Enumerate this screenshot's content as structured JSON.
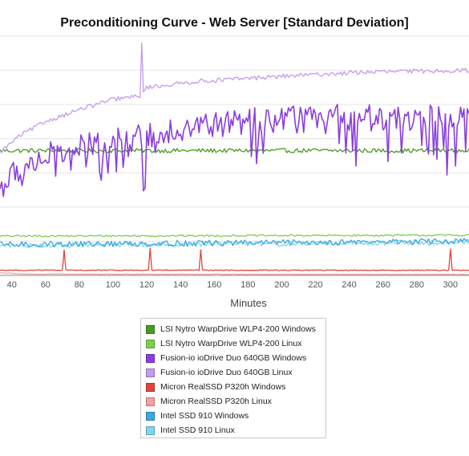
{
  "chart_data": {
    "type": "line",
    "title": "Preconditioning Curve - Web Server [Standard Deviation]",
    "xlabel": "Minutes",
    "ylabel": "",
    "xlim": [
      33,
      311
    ],
    "ylim": [
      0,
      28
    ],
    "x_ticks": [
      40,
      60,
      80,
      100,
      120,
      140,
      160,
      180,
      200,
      220,
      240,
      260,
      280,
      300
    ],
    "grid": true,
    "legend_position": "bottom",
    "series": [
      {
        "name": "LSI Nytro WarpDrive WLP4-200 Windows",
        "color": "#4a9a1c",
        "profile": [
          [
            33,
            14.6
          ],
          [
            311,
            14.6
          ]
        ],
        "noise": 0.25,
        "spikes": []
      },
      {
        "name": "LSI Nytro WarpDrive WLP4-200 Linux",
        "color": "#7bd04a",
        "profile": [
          [
            33,
            4.6
          ],
          [
            311,
            4.7
          ]
        ],
        "noise": 0.1,
        "spikes": []
      },
      {
        "name": "Fusion-io ioDrive Duo 640GB Windows",
        "color": "#8a3ee0",
        "profile": [
          [
            33,
            10.2
          ],
          [
            45,
            12.5
          ],
          [
            60,
            14.0
          ],
          [
            90,
            15.3
          ],
          [
            115,
            16.0
          ],
          [
            130,
            17.0
          ],
          [
            180,
            18.0
          ],
          [
            240,
            18.5
          ],
          [
            311,
            18.3
          ]
        ],
        "noise": 1.6,
        "spikes": []
      },
      {
        "name": "Fusion-io ioDrive Duo 640GB Linux",
        "color": "#c29af0",
        "profile": [
          [
            33,
            14.4
          ],
          [
            45,
            16.4
          ],
          [
            60,
            18.0
          ],
          [
            80,
            19.4
          ],
          [
            100,
            20.6
          ],
          [
            117,
            21.0
          ],
          [
            120,
            22.0
          ],
          [
            150,
            22.7
          ],
          [
            200,
            23.3
          ],
          [
            250,
            23.8
          ],
          [
            311,
            24.0
          ]
        ],
        "noise": 0.25,
        "spikes": [
          [
            117,
            27.2
          ],
          [
            116,
            20.8
          ]
        ]
      },
      {
        "name": "Micron RealSSD P320h Windows",
        "color": "#e0443c",
        "profile": [
          [
            33,
            0.6
          ],
          [
            311,
            0.6
          ]
        ],
        "noise": 0.05,
        "spikes": [
          [
            71,
            3.0
          ],
          [
            122,
            3.2
          ],
          [
            152,
            3.0
          ],
          [
            300,
            3.1
          ]
        ]
      },
      {
        "name": "Micron RealSSD P320h Linux",
        "color": "#f4a0a0",
        "profile": [
          [
            33,
            0.3
          ],
          [
            50,
            0.15
          ],
          [
            311,
            0.1
          ]
        ],
        "noise": 0.03,
        "spikes": []
      },
      {
        "name": "Intel SSD 910 Windows",
        "color": "#3ba8e0",
        "profile": [
          [
            33,
            3.6
          ],
          [
            311,
            4.0
          ]
        ],
        "noise": 0.35,
        "spikes": []
      },
      {
        "name": "Intel SSD 910 Linux",
        "color": "#7fd6f2",
        "profile": [
          [
            33,
            3.5
          ],
          [
            311,
            3.9
          ]
        ],
        "noise": 0.3,
        "spikes": []
      }
    ]
  }
}
